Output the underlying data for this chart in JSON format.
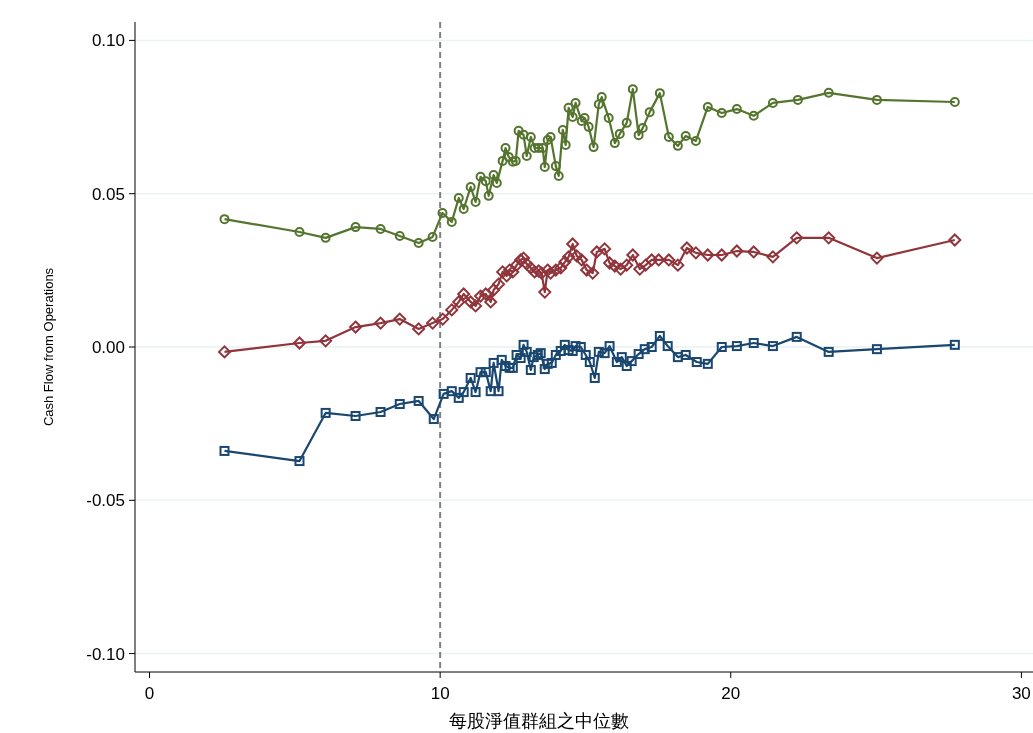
{
  "chart_data": {
    "type": "line",
    "xlabel": "每股淨值群組之中位數",
    "ylabel": "Cash Flow from Operations",
    "xlim": [
      -0.5,
      30.4
    ],
    "ylim": [
      -0.106,
      0.106
    ],
    "xticks": [
      0,
      10,
      20,
      30
    ],
    "yticks": [
      {
        "value": -0.1,
        "label": "-0.10"
      },
      {
        "value": -0.05,
        "label": "-0.05"
      },
      {
        "value": 0,
        "label": "0.00"
      },
      {
        "value": 0.05,
        "label": "0.05"
      },
      {
        "value": 0.1,
        "label": "0.10"
      }
    ],
    "grid": "y",
    "ref_lines": [
      {
        "axis": "x",
        "value": 10,
        "color": "#808080",
        "line_style": "dashed"
      }
    ],
    "series": [
      {
        "color": "#55752f",
        "marker": "circle",
        "x": [
          2.58,
          5.16,
          6.06,
          7.09,
          7.95,
          8.61,
          9.26,
          9.74,
          10.08,
          10.4,
          10.64,
          10.81,
          11.05,
          11.22,
          11.39,
          11.57,
          11.67,
          11.84,
          11.95,
          12.15,
          12.25,
          12.36,
          12.5,
          12.6,
          12.7,
          12.87,
          12.98,
          13.12,
          13.25,
          13.39,
          13.53,
          13.6,
          13.7,
          13.8,
          13.98,
          14.08,
          14.22,
          14.32,
          14.42,
          14.56,
          14.66,
          14.87,
          14.97,
          15.11,
          15.28,
          15.46,
          15.56,
          15.8,
          16.01,
          16.18,
          16.42,
          16.63,
          16.83,
          16.97,
          17.21,
          17.56,
          17.87,
          18.18,
          18.45,
          18.8,
          19.21,
          19.69,
          20.21,
          20.79,
          21.45,
          22.31,
          23.37,
          25.03,
          27.71
        ],
        "values": [
          0.0417,
          0.0375,
          0.0356,
          0.0391,
          0.0385,
          0.0362,
          0.0339,
          0.0359,
          0.0437,
          0.0408,
          0.0486,
          0.045,
          0.0522,
          0.0473,
          0.0555,
          0.0541,
          0.0493,
          0.0561,
          0.0535,
          0.0607,
          0.0649,
          0.062,
          0.0604,
          0.0607,
          0.0705,
          0.0692,
          0.0623,
          0.0685,
          0.0649,
          0.0649,
          0.0649,
          0.0587,
          0.0675,
          0.0685,
          0.059,
          0.0558,
          0.0708,
          0.0659,
          0.078,
          0.075,
          0.0796,
          0.0737,
          0.0747,
          0.0718,
          0.0652,
          0.0792,
          0.0815,
          0.0747,
          0.0665,
          0.0695,
          0.0731,
          0.0841,
          0.0691,
          0.0714,
          0.0766,
          0.0828,
          0.0685,
          0.0656,
          0.0688,
          0.0672,
          0.0783,
          0.0763,
          0.0776,
          0.0754,
          0.0796,
          0.0806,
          0.0829,
          0.0806,
          0.0799
        ]
      },
      {
        "color": "#90353b",
        "marker": "diamond",
        "x": [
          2.58,
          5.16,
          6.06,
          7.09,
          7.95,
          8.61,
          9.26,
          9.74,
          10.09,
          10.4,
          10.64,
          10.81,
          11.05,
          11.22,
          11.39,
          11.57,
          11.74,
          11.84,
          12.01,
          12.15,
          12.29,
          12.39,
          12.5,
          12.63,
          12.77,
          12.87,
          12.98,
          13.12,
          13.25,
          13.39,
          13.49,
          13.6,
          13.7,
          13.8,
          13.98,
          14.15,
          14.29,
          14.42,
          14.56,
          14.7,
          14.87,
          15.04,
          15.25,
          15.39,
          15.66,
          15.83,
          16.01,
          16.21,
          16.42,
          16.63,
          16.87,
          17.07,
          17.28,
          17.52,
          17.87,
          18.18,
          18.49,
          18.8,
          19.21,
          19.69,
          20.21,
          20.79,
          21.45,
          22.27,
          23.37,
          25.03,
          27.71
        ],
        "values": [
          -0.0016,
          0.0013,
          0.002,
          0.0065,
          0.0078,
          0.0091,
          0.0059,
          0.0078,
          0.0091,
          0.0121,
          0.0147,
          0.0173,
          0.0147,
          0.0134,
          0.0166,
          0.0173,
          0.0147,
          0.0186,
          0.0205,
          0.0245,
          0.0232,
          0.0251,
          0.0245,
          0.0267,
          0.0284,
          0.029,
          0.0271,
          0.0258,
          0.0245,
          0.0248,
          0.0241,
          0.0179,
          0.0251,
          0.0241,
          0.0251,
          0.0258,
          0.0277,
          0.0294,
          0.0336,
          0.0297,
          0.0284,
          0.0251,
          0.0241,
          0.031,
          0.032,
          0.0274,
          0.0264,
          0.0254,
          0.0267,
          0.03,
          0.0254,
          0.0267,
          0.0284,
          0.0284,
          0.0284,
          0.0267,
          0.0323,
          0.0307,
          0.03,
          0.03,
          0.0313,
          0.031,
          0.0294,
          0.0356,
          0.0356,
          0.029,
          0.0349
        ]
      },
      {
        "color": "#1a476f",
        "marker": "square",
        "x": [
          2.58,
          5.16,
          6.06,
          7.09,
          7.95,
          8.61,
          9.26,
          9.78,
          10.12,
          10.4,
          10.64,
          10.81,
          11.05,
          11.22,
          11.39,
          11.57,
          11.74,
          11.84,
          12.01,
          12.12,
          12.25,
          12.39,
          12.5,
          12.63,
          12.77,
          12.87,
          12.98,
          13.12,
          13.22,
          13.36,
          13.46,
          13.6,
          13.7,
          13.84,
          13.98,
          14.15,
          14.29,
          14.42,
          14.56,
          14.66,
          14.84,
          15.01,
          15.15,
          15.32,
          15.46,
          15.66,
          15.83,
          16.08,
          16.25,
          16.42,
          16.59,
          16.83,
          17.04,
          17.28,
          17.56,
          17.83,
          18.18,
          18.45,
          18.83,
          19.21,
          19.69,
          20.21,
          20.79,
          21.45,
          22.27,
          23.37,
          25.03,
          27.71
        ],
        "values": [
          -0.0339,
          -0.0372,
          -0.0215,
          -0.0225,
          -0.0212,
          -0.0186,
          -0.0176,
          -0.0235,
          -0.0153,
          -0.0144,
          -0.0166,
          -0.0147,
          -0.0101,
          -0.0147,
          -0.0082,
          -0.0082,
          -0.0144,
          -0.0052,
          -0.0144,
          -0.0042,
          -0.0062,
          -0.0068,
          -0.0068,
          -0.0026,
          -0.0036,
          0.0007,
          -0.0016,
          -0.0075,
          -0.0033,
          -0.0026,
          -0.002,
          -0.0072,
          -0.0055,
          -0.0052,
          -0.0026,
          -0.0013,
          0.0007,
          -0.001,
          -0.0013,
          0.0003,
          0.0,
          -0.0026,
          -0.0049,
          -0.0101,
          -0.0016,
          -0.002,
          0.0003,
          -0.0049,
          -0.0033,
          -0.0062,
          -0.0046,
          -0.0023,
          -0.0007,
          0.0,
          0.0036,
          0.0003,
          -0.0033,
          -0.0026,
          -0.0049,
          -0.0055,
          0.0,
          0.0003,
          0.0013,
          0.0003,
          0.0033,
          -0.0016,
          -0.0007,
          0.0007
        ]
      }
    ]
  }
}
